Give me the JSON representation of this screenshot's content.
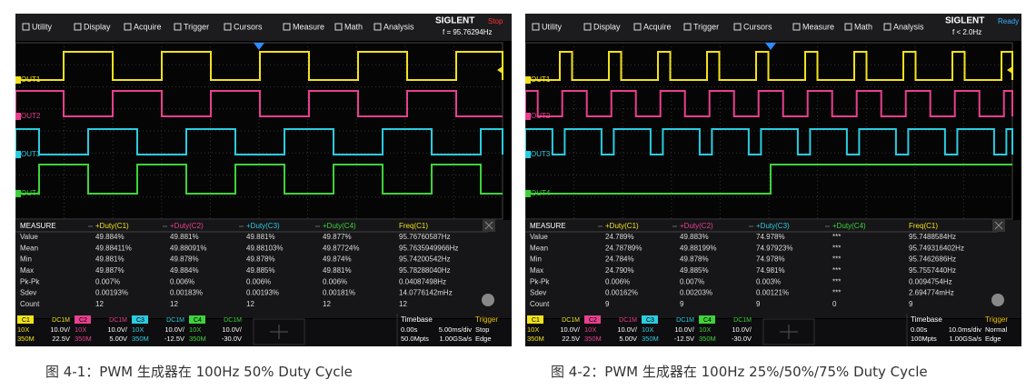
{
  "screens": [
    {
      "menu": [
        "Utility",
        "Display",
        "Acquire",
        "Trigger",
        "Cursors",
        "Measure",
        "Math",
        "Analysis"
      ],
      "brand": "SIGLENT",
      "status": "Stop",
      "freq": "f = 95.76294Hz",
      "channel_labels": [
        "OUT1",
        "OUT2",
        "OUT3",
        "OUT4"
      ],
      "measure": {
        "header": [
          "MEASURE",
          "+Duty(C1)",
          "+Duty(C2)",
          "+Duty(C3)",
          "+Duty(C4)",
          "Freq(C1)"
        ],
        "rows": [
          [
            "Value",
            "49.884%",
            "49.881%",
            "49.881%",
            "49.877%",
            "95.76760587Hz"
          ],
          [
            "Mean",
            "49.88411%",
            "49.88091%",
            "49.88103%",
            "49.87724%",
            "95.7635949966Hz"
          ],
          [
            "Min",
            "49.881%",
            "49.878%",
            "49.878%",
            "49.874%",
            "95.74200542Hz"
          ],
          [
            "Max",
            "49.887%",
            "49.884%",
            "49.885%",
            "49.881%",
            "95.78288040Hz"
          ],
          [
            "Pk-Pk",
            "0.007%",
            "0.006%",
            "0.006%",
            "0.006%",
            "0.04087498Hz"
          ],
          [
            "Sdev",
            "0.00193%",
            "0.00183%",
            "0.00193%",
            "0.00181%",
            "14.0776142mHz"
          ],
          [
            "Count",
            "12",
            "12",
            "12",
            "12",
            "12"
          ]
        ]
      },
      "channels": [
        {
          "name": "C1",
          "coupling": "DC1M",
          "probe": "10X",
          "scale": "10.0V/",
          "bw": "350M",
          "offset": "22.5V"
        },
        {
          "name": "C2",
          "coupling": "DC1M",
          "probe": "10X",
          "scale": "10.0V/",
          "bw": "350M",
          "offset": "5.00V"
        },
        {
          "name": "C3",
          "coupling": "DC1M",
          "probe": "10X",
          "scale": "10.0V/",
          "bw": "350M",
          "offset": "-12.5V"
        },
        {
          "name": "C4",
          "coupling": "DC1M",
          "probe": "10X",
          "scale": "10.0V/",
          "bw": "350M",
          "offset": "-30.0V"
        }
      ],
      "timebase": {
        "label": "Timebase",
        "delay": "0.00s",
        "scale": "5.00ms/div",
        "memory": "50.0Mpts",
        "rate": "1.00GSa/s"
      },
      "trigger": {
        "label": "Trigger",
        "mode": "Stop",
        "type": "Edge"
      }
    },
    {
      "menu": [
        "Utility",
        "Display",
        "Acquire",
        "Trigger",
        "Cursors",
        "Measure",
        "Math",
        "Analysis"
      ],
      "brand": "SIGLENT",
      "status": "Ready",
      "freq": "f < 2.0Hz",
      "channel_labels": [
        "OUT1",
        "OUT2",
        "OUT3",
        "OUT4"
      ],
      "measure": {
        "header": [
          "MEASURE",
          "+Duty(C1)",
          "+Duty(C2)",
          "+Duty(C3)",
          "+Duty(C4)",
          "Freq(C1)"
        ],
        "rows": [
          [
            "Value",
            "24.789%",
            "49.883%",
            "74.978%",
            "***",
            "95.7488584Hz"
          ],
          [
            "Mean",
            "24.78789%",
            "49.88199%",
            "74.97923%",
            "***",
            "95.749316402Hz"
          ],
          [
            "Min",
            "24.784%",
            "49.878%",
            "74.978%",
            "***",
            "95.7462686Hz"
          ],
          [
            "Max",
            "24.790%",
            "49.885%",
            "74.981%",
            "***",
            "95.7557440Hz"
          ],
          [
            "Pk-Pk",
            "0.006%",
            "0.007%",
            "0.003%",
            "***",
            "0.0094754Hz"
          ],
          [
            "Sdev",
            "0.00162%",
            "0.00203%",
            "0.00121%",
            "***",
            "2.694774mHz"
          ],
          [
            "Count",
            "9",
            "9",
            "9",
            "0",
            "9"
          ]
        ]
      },
      "channels": [
        {
          "name": "C1",
          "coupling": "DC1M",
          "probe": "10X",
          "scale": "10.0V/",
          "bw": "350M",
          "offset": "22.5V"
        },
        {
          "name": "C2",
          "coupling": "DC1M",
          "probe": "10X",
          "scale": "10.0V/",
          "bw": "350M",
          "offset": "5.00V"
        },
        {
          "name": "C3",
          "coupling": "DC1M",
          "probe": "10X",
          "scale": "10.0V/",
          "bw": "350M",
          "offset": "-12.5V"
        },
        {
          "name": "C4",
          "coupling": "DC1M",
          "probe": "10X",
          "scale": "10.0V/",
          "bw": "350M",
          "offset": "-30.0V"
        }
      ],
      "timebase": {
        "label": "Timebase",
        "delay": "0.00s",
        "scale": "10.0ms/div",
        "memory": "100Mpts",
        "rate": "1.00GSa/s"
      },
      "trigger": {
        "label": "Trigger",
        "mode": "Normal",
        "type": "Edge"
      }
    }
  ],
  "captions": [
    "图 4-1：PWM 生成器在 100Hz 50% Duty Cycle",
    "图 4-2：PWM 生成器在 100Hz 25%/50%/75% Duty Cycle"
  ]
}
